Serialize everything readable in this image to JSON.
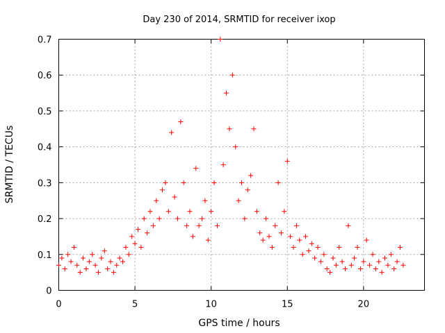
{
  "chart_data": {
    "type": "scatter",
    "title": "Day 230 of 2014, SRMTID for receiver ixop",
    "xlabel": "GPS time / hours",
    "ylabel": "SRMTID / TECUs",
    "xlim": [
      0,
      24
    ],
    "ylim": [
      0,
      0.7
    ],
    "xticks": [
      0,
      5,
      10,
      15,
      20
    ],
    "xtick_labels": [
      "0",
      "5",
      "10",
      "15",
      "20"
    ],
    "yticks": [
      0,
      0.1,
      0.2,
      0.3,
      0.4,
      0.5,
      0.6,
      0.7
    ],
    "ytick_labels": [
      "0",
      "0.1",
      "0.2",
      "0.3",
      "0.4",
      "0.5",
      "0.6",
      "0.7"
    ],
    "grid": true,
    "marker": "+",
    "color": "#ff0000",
    "series": [
      {
        "name": "SRMTID",
        "x": [
          0.0,
          0.2,
          0.4,
          0.6,
          0.8,
          1.0,
          1.2,
          1.4,
          1.6,
          1.8,
          2.0,
          2.2,
          2.4,
          2.6,
          2.8,
          3.0,
          3.2,
          3.4,
          3.6,
          3.8,
          4.0,
          4.2,
          4.4,
          4.6,
          4.8,
          5.0,
          5.2,
          5.4,
          5.6,
          5.8,
          6.0,
          6.2,
          6.4,
          6.6,
          6.8,
          7.0,
          7.2,
          7.4,
          7.6,
          7.8,
          8.0,
          8.2,
          8.4,
          8.6,
          8.8,
          9.0,
          9.2,
          9.4,
          9.6,
          9.8,
          10.0,
          10.2,
          10.4,
          10.6,
          10.8,
          11.0,
          11.2,
          11.4,
          11.6,
          11.8,
          12.0,
          12.2,
          12.4,
          12.6,
          12.8,
          13.0,
          13.2,
          13.4,
          13.6,
          13.8,
          14.0,
          14.2,
          14.4,
          14.6,
          14.8,
          15.0,
          15.2,
          15.4,
          15.6,
          15.8,
          16.0,
          16.2,
          16.4,
          16.6,
          16.8,
          17.0,
          17.2,
          17.4,
          17.6,
          17.8,
          18.0,
          18.2,
          18.4,
          18.6,
          18.8,
          19.0,
          19.2,
          19.4,
          19.6,
          19.8,
          20.0,
          20.2,
          20.4,
          20.6,
          20.8,
          21.0,
          21.2,
          21.4,
          21.6,
          21.8,
          22.0,
          22.2,
          22.4,
          22.6
        ],
        "y": [
          0.07,
          0.09,
          0.06,
          0.1,
          0.08,
          0.12,
          0.07,
          0.05,
          0.09,
          0.06,
          0.08,
          0.1,
          0.07,
          0.05,
          0.09,
          0.11,
          0.06,
          0.08,
          0.05,
          0.07,
          0.09,
          0.08,
          0.12,
          0.1,
          0.15,
          0.13,
          0.17,
          0.12,
          0.2,
          0.16,
          0.22,
          0.18,
          0.25,
          0.2,
          0.28,
          0.3,
          0.22,
          0.44,
          0.26,
          0.2,
          0.47,
          0.3,
          0.18,
          0.22,
          0.15,
          0.34,
          0.18,
          0.2,
          0.25,
          0.14,
          0.22,
          0.3,
          0.18,
          0.7,
          0.35,
          0.55,
          0.45,
          0.6,
          0.4,
          0.25,
          0.3,
          0.2,
          0.28,
          0.32,
          0.45,
          0.22,
          0.16,
          0.14,
          0.2,
          0.15,
          0.12,
          0.18,
          0.3,
          0.16,
          0.22,
          0.36,
          0.15,
          0.12,
          0.18,
          0.14,
          0.1,
          0.15,
          0.11,
          0.13,
          0.09,
          0.12,
          0.08,
          0.1,
          0.06,
          0.05,
          0.09,
          0.07,
          0.12,
          0.08,
          0.06,
          0.18,
          0.07,
          0.09,
          0.12,
          0.06,
          0.08,
          0.14,
          0.07,
          0.1,
          0.06,
          0.08,
          0.05,
          0.09,
          0.07,
          0.1,
          0.06,
          0.08,
          0.12,
          0.07
        ]
      }
    ]
  }
}
